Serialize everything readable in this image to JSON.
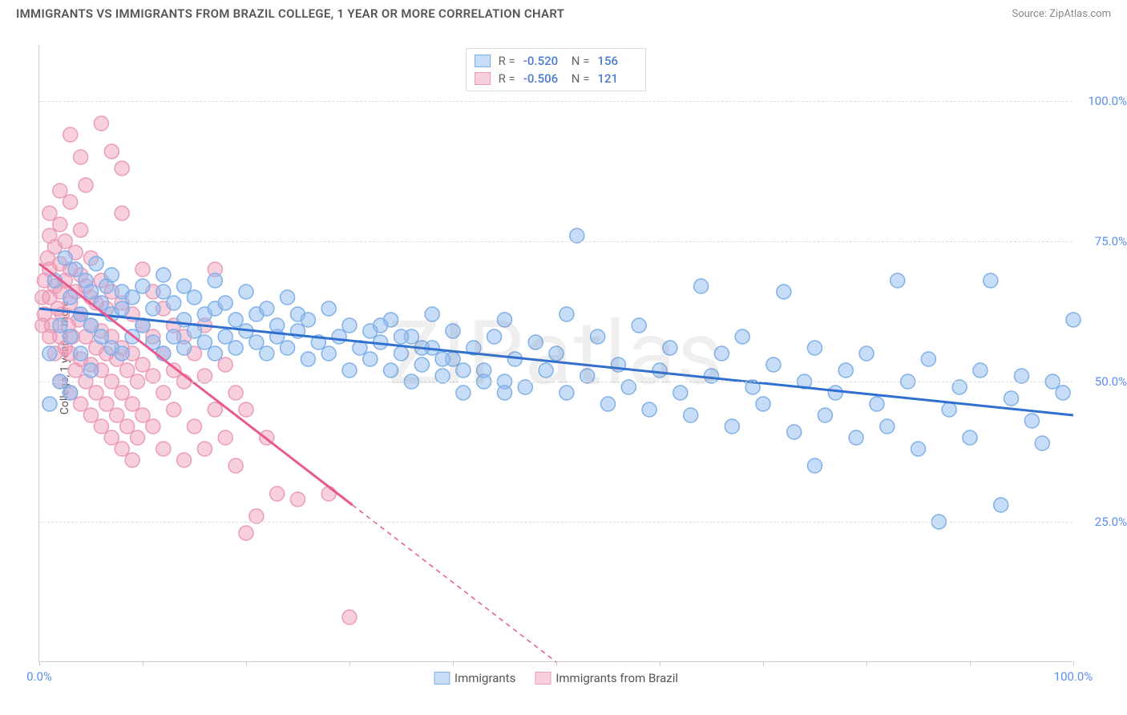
{
  "header": {
    "title": "IMMIGRANTS VS IMMIGRANTS FROM BRAZIL COLLEGE, 1 YEAR OR MORE CORRELATION CHART",
    "source_label": "Source: ",
    "source_name": "ZipAtlas.com"
  },
  "watermark": "ZIPatlas",
  "chart": {
    "type": "scatter",
    "ylabel": "College, 1 year or more",
    "xlim": [
      0,
      100
    ],
    "ylim": [
      0,
      110
    ],
    "xtick_positions": [
      0,
      10,
      20,
      30,
      40,
      50,
      60,
      70,
      80,
      90,
      100
    ],
    "xtick_labels": {
      "0": "0.0%",
      "100": "100.0%"
    },
    "ytick_positions": [
      25,
      50,
      75,
      100
    ],
    "ytick_labels": {
      "25": "25.0%",
      "50": "50.0%",
      "75": "75.0%",
      "100": "100.0%"
    },
    "background_color": "#ffffff",
    "grid_color": "#dddddd",
    "tick_label_color": "#5b8def",
    "series": [
      {
        "name": "Immigrants",
        "fill_color": "rgba(144,186,240,0.5)",
        "stroke_color": "#7fb0e8",
        "line_color": "#2f6fd0",
        "marker_radius": 9,
        "line_width": 3,
        "R": "-0.520",
        "N": "156",
        "regression": {
          "x1": 0,
          "y1": 63,
          "x2": 100,
          "y2": 44
        },
        "points": [
          [
            1,
            46
          ],
          [
            1,
            55
          ],
          [
            1.5,
            68
          ],
          [
            2,
            50
          ],
          [
            2,
            60
          ],
          [
            2.5,
            72
          ],
          [
            3,
            48
          ],
          [
            3,
            58
          ],
          [
            3,
            65
          ],
          [
            3.5,
            70
          ],
          [
            4,
            55
          ],
          [
            4,
            62
          ],
          [
            4.5,
            68
          ],
          [
            5,
            52
          ],
          [
            5,
            60
          ],
          [
            5,
            66
          ],
          [
            5.5,
            71
          ],
          [
            6,
            58
          ],
          [
            6,
            64
          ],
          [
            6.5,
            67
          ],
          [
            7,
            56
          ],
          [
            7,
            62
          ],
          [
            7,
            69
          ],
          [
            8,
            55
          ],
          [
            8,
            63
          ],
          [
            8,
            66
          ],
          [
            9,
            58
          ],
          [
            9,
            65
          ],
          [
            10,
            60
          ],
          [
            10,
            67
          ],
          [
            11,
            57
          ],
          [
            11,
            63
          ],
          [
            12,
            55
          ],
          [
            12,
            66
          ],
          [
            12,
            69
          ],
          [
            13,
            58
          ],
          [
            13,
            64
          ],
          [
            14,
            56
          ],
          [
            14,
            61
          ],
          [
            14,
            67
          ],
          [
            15,
            59
          ],
          [
            15,
            65
          ],
          [
            16,
            57
          ],
          [
            16,
            62
          ],
          [
            17,
            55
          ],
          [
            17,
            63
          ],
          [
            17,
            68
          ],
          [
            18,
            58
          ],
          [
            18,
            64
          ],
          [
            19,
            56
          ],
          [
            19,
            61
          ],
          [
            20,
            59
          ],
          [
            20,
            66
          ],
          [
            21,
            57
          ],
          [
            21,
            62
          ],
          [
            22,
            55
          ],
          [
            22,
            63
          ],
          [
            23,
            58
          ],
          [
            23,
            60
          ],
          [
            24,
            56
          ],
          [
            24,
            65
          ],
          [
            25,
            59
          ],
          [
            25,
            62
          ],
          [
            26,
            54
          ],
          [
            26,
            61
          ],
          [
            27,
            57
          ],
          [
            28,
            55
          ],
          [
            28,
            63
          ],
          [
            29,
            58
          ],
          [
            30,
            52
          ],
          [
            30,
            60
          ],
          [
            31,
            56
          ],
          [
            32,
            54
          ],
          [
            32,
            59
          ],
          [
            33,
            57
          ],
          [
            34,
            52
          ],
          [
            34,
            61
          ],
          [
            35,
            55
          ],
          [
            36,
            50
          ],
          [
            36,
            58
          ],
          [
            37,
            53
          ],
          [
            38,
            56
          ],
          [
            38,
            62
          ],
          [
            39,
            51
          ],
          [
            40,
            54
          ],
          [
            40,
            59
          ],
          [
            41,
            48
          ],
          [
            42,
            56
          ],
          [
            43,
            52
          ],
          [
            44,
            58
          ],
          [
            45,
            50
          ],
          [
            45,
            61
          ],
          [
            46,
            54
          ],
          [
            47,
            49
          ],
          [
            48,
            57
          ],
          [
            49,
            52
          ],
          [
            50,
            55
          ],
          [
            51,
            48
          ],
          [
            51,
            62
          ],
          [
            52,
            76
          ],
          [
            53,
            51
          ],
          [
            54,
            58
          ],
          [
            55,
            46
          ],
          [
            56,
            53
          ],
          [
            57,
            49
          ],
          [
            58,
            60
          ],
          [
            59,
            45
          ],
          [
            60,
            52
          ],
          [
            61,
            56
          ],
          [
            62,
            48
          ],
          [
            63,
            44
          ],
          [
            64,
            67
          ],
          [
            65,
            51
          ],
          [
            66,
            55
          ],
          [
            67,
            42
          ],
          [
            68,
            58
          ],
          [
            69,
            49
          ],
          [
            70,
            46
          ],
          [
            71,
            53
          ],
          [
            72,
            66
          ],
          [
            73,
            41
          ],
          [
            74,
            50
          ],
          [
            75,
            35
          ],
          [
            75,
            56
          ],
          [
            76,
            44
          ],
          [
            77,
            48
          ],
          [
            78,
            52
          ],
          [
            79,
            40
          ],
          [
            80,
            55
          ],
          [
            81,
            46
          ],
          [
            82,
            42
          ],
          [
            83,
            68
          ],
          [
            84,
            50
          ],
          [
            85,
            38
          ],
          [
            86,
            54
          ],
          [
            87,
            25
          ],
          [
            88,
            45
          ],
          [
            89,
            49
          ],
          [
            90,
            40
          ],
          [
            91,
            52
          ],
          [
            92,
            68
          ],
          [
            93,
            28
          ],
          [
            94,
            47
          ],
          [
            95,
            51
          ],
          [
            96,
            43
          ],
          [
            97,
            39
          ],
          [
            98,
            50
          ],
          [
            99,
            48
          ],
          [
            100,
            61
          ],
          [
            33,
            60
          ],
          [
            35,
            58
          ],
          [
            37,
            56
          ],
          [
            39,
            54
          ],
          [
            41,
            52
          ],
          [
            43,
            50
          ],
          [
            45,
            48
          ]
        ]
      },
      {
        "name": "Immigrants from Brazil",
        "fill_color": "rgba(240,150,180,0.45)",
        "stroke_color": "#ea9bb8",
        "line_color": "#e85a8f",
        "marker_radius": 9,
        "line_width": 3,
        "R": "-0.506",
        "N": "121",
        "regression": {
          "x1": 0,
          "y1": 71,
          "x2": 50,
          "y2": 0
        },
        "points": [
          [
            0.5,
            62
          ],
          [
            0.5,
            68
          ],
          [
            0.8,
            72
          ],
          [
            1,
            58
          ],
          [
            1,
            65
          ],
          [
            1,
            70
          ],
          [
            1,
            76
          ],
          [
            1.2,
            60
          ],
          [
            1.5,
            55
          ],
          [
            1.5,
            67
          ],
          [
            1.5,
            74
          ],
          [
            1.8,
            63
          ],
          [
            2,
            50
          ],
          [
            2,
            58
          ],
          [
            2,
            66
          ],
          [
            2,
            71
          ],
          [
            2,
            78
          ],
          [
            2.2,
            62
          ],
          [
            2.5,
            56
          ],
          [
            2.5,
            68
          ],
          [
            2.5,
            75
          ],
          [
            2.8,
            60
          ],
          [
            3,
            48
          ],
          [
            3,
            55
          ],
          [
            3,
            64
          ],
          [
            3,
            70
          ],
          [
            3,
            82
          ],
          [
            3.2,
            58
          ],
          [
            3.5,
            52
          ],
          [
            3.5,
            66
          ],
          [
            3.5,
            73
          ],
          [
            3.8,
            61
          ],
          [
            4,
            46
          ],
          [
            4,
            54
          ],
          [
            4,
            62
          ],
          [
            4,
            69
          ],
          [
            4,
            77
          ],
          [
            4.5,
            50
          ],
          [
            4.5,
            58
          ],
          [
            4.5,
            67
          ],
          [
            4.5,
            85
          ],
          [
            5,
            44
          ],
          [
            5,
            53
          ],
          [
            5,
            60
          ],
          [
            5,
            65
          ],
          [
            5,
            72
          ],
          [
            5.5,
            48
          ],
          [
            5.5,
            56
          ],
          [
            5.5,
            64
          ],
          [
            6,
            42
          ],
          [
            6,
            52
          ],
          [
            6,
            59
          ],
          [
            6,
            68
          ],
          [
            6,
            96
          ],
          [
            6.5,
            46
          ],
          [
            6.5,
            55
          ],
          [
            6.5,
            63
          ],
          [
            7,
            40
          ],
          [
            7,
            50
          ],
          [
            7,
            58
          ],
          [
            7,
            66
          ],
          [
            7,
            91
          ],
          [
            7.5,
            44
          ],
          [
            7.5,
            54
          ],
          [
            8,
            38
          ],
          [
            8,
            48
          ],
          [
            8,
            56
          ],
          [
            8,
            64
          ],
          [
            8,
            80
          ],
          [
            8.5,
            42
          ],
          [
            8.5,
            52
          ],
          [
            9,
            36
          ],
          [
            9,
            46
          ],
          [
            9,
            55
          ],
          [
            9,
            62
          ],
          [
            9.5,
            40
          ],
          [
            9.5,
            50
          ],
          [
            10,
            44
          ],
          [
            10,
            53
          ],
          [
            10,
            60
          ],
          [
            10,
            70
          ],
          [
            11,
            42
          ],
          [
            11,
            51
          ],
          [
            11,
            58
          ],
          [
            11,
            66
          ],
          [
            12,
            38
          ],
          [
            12,
            48
          ],
          [
            12,
            55
          ],
          [
            12,
            63
          ],
          [
            13,
            45
          ],
          [
            13,
            52
          ],
          [
            13,
            60
          ],
          [
            14,
            36
          ],
          [
            14,
            50
          ],
          [
            14,
            58
          ],
          [
            15,
            42
          ],
          [
            15,
            55
          ],
          [
            16,
            38
          ],
          [
            16,
            51
          ],
          [
            16,
            60
          ],
          [
            17,
            45
          ],
          [
            17,
            70
          ],
          [
            18,
            40
          ],
          [
            18,
            53
          ],
          [
            19,
            35
          ],
          [
            19,
            48
          ],
          [
            20,
            23
          ],
          [
            20,
            45
          ],
          [
            21,
            26
          ],
          [
            22,
            40
          ],
          [
            23,
            30
          ],
          [
            25,
            29
          ],
          [
            28,
            30
          ],
          [
            30,
            8
          ],
          [
            8,
            88
          ],
          [
            3,
            94
          ],
          [
            4,
            90
          ],
          [
            1,
            80
          ],
          [
            2,
            84
          ],
          [
            0.3,
            65
          ],
          [
            0.3,
            60
          ]
        ]
      }
    ],
    "bottom_legend": [
      {
        "label": "Immigrants",
        "swatch_fill": "rgba(144,186,240,0.5)",
        "swatch_stroke": "#7fb0e8"
      },
      {
        "label": "Immigrants from Brazil",
        "swatch_fill": "rgba(240,150,180,0.45)",
        "swatch_stroke": "#ea9bb8"
      }
    ]
  }
}
